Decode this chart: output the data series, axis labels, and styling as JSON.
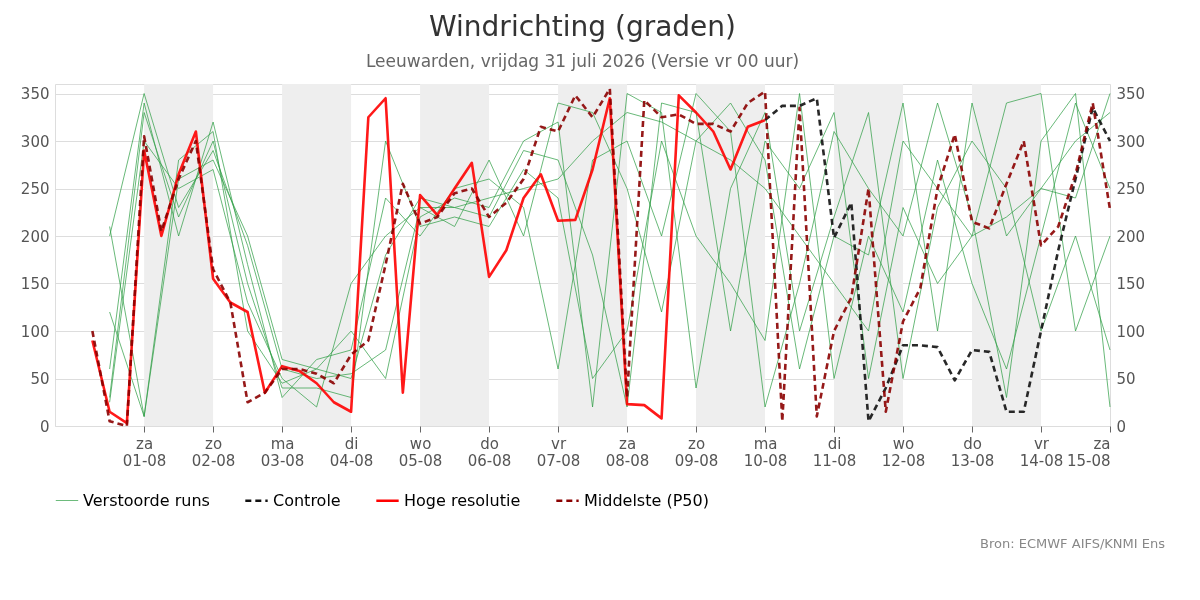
{
  "chart_data": {
    "type": "line",
    "title": "Windrichting (graden)",
    "subtitle": "Leeuwarden, vrijdag 31 juli 2026 (Versie vr 00 uur)",
    "annotations": [
      "Bron: ECMWF AIFS/KNMI Ens"
    ],
    "x": [
      "2026-07-31T06:00",
      "2026-07-31T12:00",
      "2026-07-31T18:00",
      "2026-08-01T00:00",
      "2026-08-01T06:00",
      "2026-08-01T12:00",
      "2026-08-01T18:00",
      "2026-08-02T00:00",
      "2026-08-02T06:00",
      "2026-08-02T12:00",
      "2026-08-02T18:00",
      "2026-08-03T00:00",
      "2026-08-03T06:00",
      "2026-08-03T12:00",
      "2026-08-03T18:00",
      "2026-08-04T00:00",
      "2026-08-04T06:00",
      "2026-08-04T12:00",
      "2026-08-04T18:00",
      "2026-08-05T00:00",
      "2026-08-05T06:00",
      "2026-08-05T12:00",
      "2026-08-05T18:00",
      "2026-08-06T00:00",
      "2026-08-06T06:00",
      "2026-08-06T12:00",
      "2026-08-06T18:00",
      "2026-08-07T00:00",
      "2026-08-07T06:00",
      "2026-08-07T12:00",
      "2026-08-07T18:00",
      "2026-08-08T00:00",
      "2026-08-08T06:00",
      "2026-08-08T12:00",
      "2026-08-08T18:00",
      "2026-08-09T00:00",
      "2026-08-09T06:00",
      "2026-08-09T12:00",
      "2026-08-09T18:00",
      "2026-08-10T00:00",
      "2026-08-10T06:00",
      "2026-08-10T12:00",
      "2026-08-10T18:00",
      "2026-08-11T00:00",
      "2026-08-11T06:00",
      "2026-08-11T12:00",
      "2026-08-11T18:00",
      "2026-08-12T00:00",
      "2026-08-12T06:00",
      "2026-08-12T12:00",
      "2026-08-12T18:00",
      "2026-08-13T00:00",
      "2026-08-13T06:00",
      "2026-08-13T12:00",
      "2026-08-13T18:00",
      "2026-08-14T00:00",
      "2026-08-14T06:00",
      "2026-08-14T12:00",
      "2026-08-14T18:00",
      "2026-08-15T00:00"
    ],
    "series": [
      {
        "name": "Verstoorde runs",
        "color": "#2e9e44",
        "line_style": "solid",
        "x": [
          "2026-07-31T12:00",
          "2026-08-01T00:00",
          "2026-08-01T12:00",
          "2026-08-02T00:00",
          "2026-08-02T12:00",
          "2026-08-03T00:00",
          "2026-08-03T12:00",
          "2026-08-04T00:00",
          "2026-08-04T12:00",
          "2026-08-05T00:00",
          "2026-08-05T12:00",
          "2026-08-06T00:00",
          "2026-08-06T12:00",
          "2026-08-07T00:00",
          "2026-08-07T12:00",
          "2026-08-08T00:00",
          "2026-08-08T12:00",
          "2026-08-09T00:00",
          "2026-08-09T12:00",
          "2026-08-10T00:00",
          "2026-08-10T12:00",
          "2026-08-11T00:00",
          "2026-08-11T12:00",
          "2026-08-12T00:00",
          "2026-08-12T12:00",
          "2026-08-13T00:00",
          "2026-08-13T12:00",
          "2026-08-14T00:00",
          "2026-08-14T12:00",
          "2026-08-15T00:00"
        ],
        "values": [
          200,
          350,
          230,
          290,
          190,
          60,
          50,
          55,
          80,
          230,
          230,
          240,
          250,
          260,
          300,
          330,
          320,
          300,
          280,
          250,
          200,
          150,
          100,
          300,
          250,
          200,
          220,
          250,
          300,
          330
        ]
      },
      {
        "color": "#2e9e44",
        "line_style": "solid",
        "x": [
          "2026-07-31T12:00",
          "2026-08-01T00:00",
          "2026-08-01T12:00",
          "2026-08-02T00:00",
          "2026-08-02T12:00",
          "2026-08-03T00:00",
          "2026-08-03T12:00",
          "2026-08-04T00:00",
          "2026-08-04T12:00",
          "2026-08-05T00:00",
          "2026-08-05T12:00",
          "2026-08-06T00:00",
          "2026-08-06T12:00",
          "2026-08-07T00:00",
          "2026-08-07T12:00",
          "2026-08-08T00:00",
          "2026-08-08T12:00",
          "2026-08-09T00:00",
          "2026-08-09T12:00",
          "2026-08-10T00:00",
          "2026-08-10T12:00",
          "2026-08-11T00:00",
          "2026-08-11T12:00",
          "2026-08-12T00:00",
          "2026-08-12T12:00",
          "2026-08-13T00:00",
          "2026-08-13T12:00",
          "2026-08-14T00:00",
          "2026-08-14T12:00",
          "2026-08-15T00:00"
        ],
        "values": [
          30,
          330,
          220,
          300,
          150,
          40,
          40,
          30,
          300,
          210,
          220,
          210,
          270,
          240,
          50,
          100,
          300,
          200,
          150,
          90,
          350,
          50,
          200,
          120,
          280,
          150,
          60,
          200,
          340,
          250
        ]
      },
      {
        "color": "#2e9e44",
        "line_style": "solid",
        "x": [
          "2026-07-31T12:00",
          "2026-08-01T00:00",
          "2026-08-01T12:00",
          "2026-08-02T00:00",
          "2026-08-02T12:00",
          "2026-08-03T00:00",
          "2026-08-03T12:00",
          "2026-08-04T00:00",
          "2026-08-04T12:00",
          "2026-08-05T00:00",
          "2026-08-05T12:00",
          "2026-08-06T00:00",
          "2026-08-06T12:00",
          "2026-08-07T00:00",
          "2026-08-07T12:00",
          "2026-08-08T00:00",
          "2026-08-08T12:00",
          "2026-08-09T00:00",
          "2026-08-09T12:00",
          "2026-08-10T00:00",
          "2026-08-10T12:00",
          "2026-08-11T00:00",
          "2026-08-11T12:00",
          "2026-08-12T00:00",
          "2026-08-12T12:00",
          "2026-08-13T00:00",
          "2026-08-13T12:00",
          "2026-08-14T00:00",
          "2026-08-14T12:00",
          "2026-08-15T00:00"
        ],
        "values": [
          120,
          10,
          260,
          280,
          200,
          70,
          60,
          100,
          50,
          220,
          240,
          230,
          300,
          320,
          20,
          350,
          330,
          40,
          250,
          330,
          100,
          220,
          330,
          50,
          230,
          300,
          250,
          100,
          200,
          80
        ]
      },
      {
        "color": "#2e9e44",
        "line_style": "solid",
        "x": [
          "2026-07-31T12:00",
          "2026-08-01T00:00",
          "2026-08-01T12:00",
          "2026-08-02T00:00",
          "2026-08-02T12:00",
          "2026-08-03T00:00",
          "2026-08-03T12:00",
          "2026-08-04T00:00",
          "2026-08-04T12:00",
          "2026-08-05T00:00",
          "2026-08-05T12:00",
          "2026-08-06T00:00",
          "2026-08-06T12:00",
          "2026-08-07T00:00",
          "2026-08-07T12:00",
          "2026-08-08T00:00",
          "2026-08-08T12:00",
          "2026-08-09T00:00",
          "2026-08-09T12:00",
          "2026-08-10T00:00",
          "2026-08-10T12:00",
          "2026-08-11T00:00",
          "2026-08-11T12:00",
          "2026-08-12T00:00",
          "2026-08-12T12:00",
          "2026-08-13T00:00",
          "2026-08-13T12:00",
          "2026-08-14T00:00",
          "2026-08-14T12:00",
          "2026-08-15T00:00"
        ],
        "values": [
          60,
          340,
          200,
          320,
          170,
          30,
          70,
          80,
          240,
          200,
          250,
          260,
          230,
          60,
          280,
          300,
          200,
          350,
          310,
          20,
          150,
          310,
          250,
          200,
          340,
          220,
          30,
          300,
          350,
          20
        ]
      },
      {
        "color": "#2e9e44",
        "line_style": "solid",
        "x": [
          "2026-07-31T12:00",
          "2026-08-01T00:00",
          "2026-08-01T12:00",
          "2026-08-02T00:00",
          "2026-08-02T12:00",
          "2026-08-03T00:00",
          "2026-08-03T12:00",
          "2026-08-04T00:00",
          "2026-08-04T12:00",
          "2026-08-05T00:00",
          "2026-08-05T12:00",
          "2026-08-06T00:00",
          "2026-08-06T12:00",
          "2026-08-07T00:00",
          "2026-08-07T12:00",
          "2026-08-08T00:00",
          "2026-08-08T12:00",
          "2026-08-09T00:00",
          "2026-08-09T12:00",
          "2026-08-10T00:00",
          "2026-08-10T12:00",
          "2026-08-11T00:00",
          "2026-08-11T12:00",
          "2026-08-12T00:00",
          "2026-08-12T12:00",
          "2026-08-13T00:00",
          "2026-08-13T12:00",
          "2026-08-14T00:00",
          "2026-08-14T12:00",
          "2026-08-15T00:00"
        ],
        "values": [
          25,
          300,
          250,
          270,
          130,
          50,
          20,
          150,
          200,
          230,
          210,
          280,
          200,
          340,
          330,
          250,
          120,
          300,
          340,
          280,
          60,
          200,
          180,
          340,
          100,
          340,
          200,
          250,
          240,
          350
        ]
      },
      {
        "color": "#2e9e44",
        "line_style": "solid",
        "x": [
          "2026-07-31T12:00",
          "2026-08-01T00:00",
          "2026-08-01T12:00",
          "2026-08-02T00:00",
          "2026-08-02T12:00",
          "2026-08-03T00:00",
          "2026-08-03T12:00",
          "2026-08-04T00:00",
          "2026-08-04T12:00",
          "2026-08-05T00:00",
          "2026-08-05T12:00",
          "2026-08-06T00:00",
          "2026-08-06T12:00",
          "2026-08-07T00:00",
          "2026-08-07T12:00",
          "2026-08-08T00:00",
          "2026-08-08T12:00",
          "2026-08-09T00:00",
          "2026-08-09T12:00",
          "2026-08-10T00:00",
          "2026-08-10T12:00",
          "2026-08-11T00:00",
          "2026-08-11T12:00",
          "2026-08-12T00:00",
          "2026-08-12T12:00",
          "2026-08-13T00:00",
          "2026-08-13T12:00",
          "2026-08-14T00:00",
          "2026-08-14T12:00",
          "2026-08-15T00:00"
        ],
        "values": [
          210,
          10,
          280,
          310,
          100,
          45,
          60,
          50,
          180,
          240,
          230,
          220,
          290,
          280,
          180,
          20,
          340,
          330,
          100,
          300,
          250,
          330,
          50,
          230,
          150,
          200,
          340,
          350,
          100,
          200
        ]
      },
      {
        "name": "Controle",
        "color": "#111111",
        "line_style": "dashed",
        "values": [
          null,
          null,
          null,
          null,
          null,
          null,
          null,
          null,
          null,
          null,
          null,
          null,
          null,
          null,
          null,
          null,
          null,
          null,
          null,
          null,
          null,
          null,
          null,
          null,
          null,
          null,
          null,
          null,
          null,
          null,
          null,
          null,
          null,
          null,
          null,
          null,
          null,
          null,
          null,
          322,
          337,
          337,
          345,
          198,
          235,
          5,
          40,
          85,
          85,
          83,
          48,
          80,
          78,
          15,
          15,
          100,
          185,
          260,
          335,
          300
        ]
      },
      {
        "name": "Hoge resolutie",
        "color": "#ff0000",
        "line_style": "solid",
        "values": [
          90,
          15,
          3,
          290,
          200,
          265,
          310,
          155,
          130,
          120,
          35,
          63,
          58,
          45,
          25,
          15,
          325,
          345,
          35,
          243,
          222,
          250,
          277,
          157,
          185,
          240,
          265,
          216,
          217,
          270,
          345,
          23,
          22,
          8,
          348,
          330,
          310,
          270,
          315,
          322,
          null,
          null,
          null,
          null,
          null,
          null,
          null,
          null,
          null,
          null,
          null,
          null,
          null,
          null,
          null,
          null,
          null,
          null,
          null,
          null
        ]
      },
      {
        "name": "Middelste (P50)",
        "color": "#8b0000",
        "line_style": "dashed",
        "values": [
          100,
          5,
          0,
          305,
          205,
          260,
          300,
          165,
          130,
          25,
          35,
          60,
          60,
          55,
          45,
          75,
          90,
          170,
          255,
          213,
          220,
          245,
          250,
          220,
          235,
          260,
          315,
          310,
          348,
          325,
          355,
          30,
          343,
          325,
          328,
          318,
          318,
          310,
          340,
          352,
          5,
          335,
          10,
          100,
          135,
          250,
          15,
          110,
          145,
          250,
          307,
          215,
          208,
          255,
          300,
          190,
          210,
          265,
          340,
          228
        ]
      }
    ],
    "xlim": [
      "2026-07-30T17:00",
      "2026-08-15T00:00"
    ],
    "xticks": [
      {
        "value": "2026-08-01",
        "label": "za\n01-08"
      },
      {
        "value": "2026-08-02",
        "label": "zo\n02-08"
      },
      {
        "value": "2026-08-03",
        "label": "ma\n03-08"
      },
      {
        "value": "2026-08-04",
        "label": "di\n04-08"
      },
      {
        "value": "2026-08-05",
        "label": "wo\n05-08"
      },
      {
        "value": "2026-08-06",
        "label": "do\n06-08"
      },
      {
        "value": "2026-08-07",
        "label": "vr\n07-08"
      },
      {
        "value": "2026-08-08",
        "label": "za\n08-08"
      },
      {
        "value": "2026-08-09",
        "label": "zo\n09-08"
      },
      {
        "value": "2026-08-10",
        "label": "ma\n10-08"
      },
      {
        "value": "2026-08-11",
        "label": "di\n11-08"
      },
      {
        "value": "2026-08-12",
        "label": "wo\n12-08"
      },
      {
        "value": "2026-08-13",
        "label": "do\n13-08"
      },
      {
        "value": "2026-08-14",
        "label": "vr\n14-08"
      },
      {
        "value": "2026-08-15",
        "label": "za\n15-08"
      }
    ],
    "ylim": [
      0,
      360
    ],
    "yticks": [
      0,
      50,
      100,
      150,
      200,
      250,
      300,
      350
    ],
    "y2lim": [
      0,
      360
    ],
    "y2ticks": [
      0,
      50,
      100,
      150,
      200,
      250,
      300,
      350
    ],
    "bands": [
      {
        "axis": "x",
        "from": "2026-08-01",
        "to": "2026-08-02",
        "color": "#eeeeee"
      },
      {
        "axis": "x",
        "from": "2026-08-03",
        "to": "2026-08-04",
        "color": "#eeeeee"
      },
      {
        "axis": "x",
        "from": "2026-08-05",
        "to": "2026-08-06",
        "color": "#eeeeee"
      },
      {
        "axis": "x",
        "from": "2026-08-07",
        "to": "2026-08-08",
        "color": "#eeeeee"
      },
      {
        "axis": "x",
        "from": "2026-08-09",
        "to": "2026-08-10",
        "color": "#eeeeee"
      },
      {
        "axis": "x",
        "from": "2026-08-11",
        "to": "2026-08-12",
        "color": "#eeeeee"
      },
      {
        "axis": "x",
        "from": "2026-08-13",
        "to": "2026-08-14",
        "color": "#eeeeee"
      }
    ],
    "grid": "y",
    "legend": "bottom",
    "marker": "none"
  }
}
